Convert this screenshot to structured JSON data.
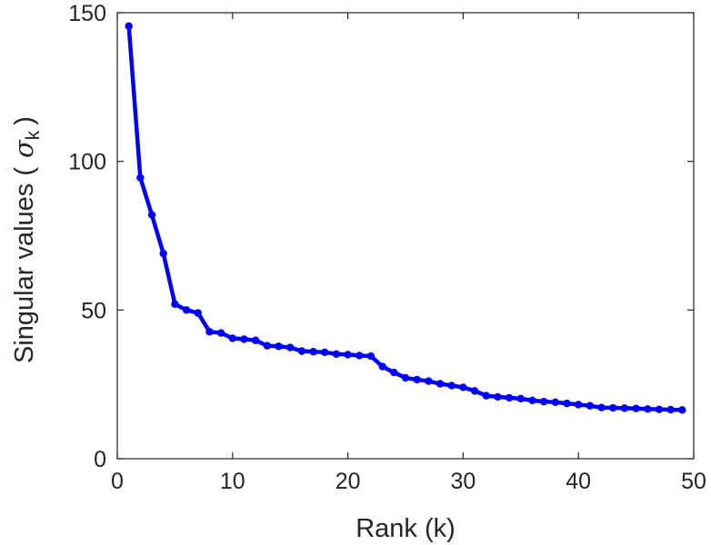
{
  "chart_data": {
    "type": "line",
    "title": "",
    "xlabel": "Rank (k)",
    "ylabel": {
      "prefix": "Singular values (",
      "symbol": "σ",
      "subscript": "k",
      "suffix": ")"
    },
    "xlim": [
      0,
      50
    ],
    "ylim": [
      0,
      150
    ],
    "xticks": [
      "0",
      "10",
      "20",
      "30",
      "40",
      "50"
    ],
    "yticks": [
      "0",
      "50",
      "100",
      "150"
    ],
    "grid": false,
    "legend": "none",
    "series": [
      {
        "color": "#0000ff",
        "marker": "circle",
        "x": [
          1,
          2,
          3,
          4,
          5,
          6,
          7,
          8,
          9,
          10,
          11,
          12,
          13,
          14,
          15,
          16,
          17,
          18,
          19,
          20,
          21,
          22,
          23,
          24,
          25,
          26,
          27,
          28,
          29,
          30,
          31,
          32,
          33,
          34,
          35,
          36,
          37,
          38,
          39,
          40,
          41,
          42,
          43,
          44,
          45,
          46,
          47,
          48,
          49
        ],
        "y": [
          145.5,
          94.5,
          82,
          69,
          52,
          50,
          49,
          42.7,
          42.3,
          40.5,
          40.2,
          39.8,
          38,
          37.8,
          37.4,
          36.2,
          36,
          35.8,
          35.2,
          35,
          34.7,
          34.5,
          31,
          29,
          27.2,
          26.6,
          26.1,
          25.2,
          24.6,
          24,
          22.8,
          21.2,
          20.8,
          20.5,
          20.2,
          19.6,
          19.2,
          19,
          18.6,
          18.2,
          17.8,
          17.2,
          17.1,
          17,
          16.9,
          16.7,
          16.6,
          16.5,
          16.4
        ]
      }
    ]
  }
}
